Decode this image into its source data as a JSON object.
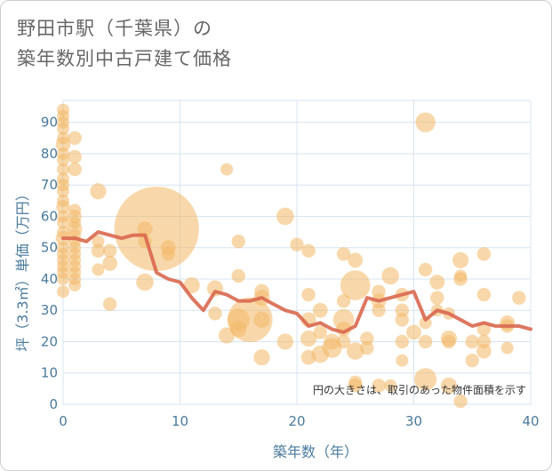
{
  "title_line1": "野田市駅（千葉県）の",
  "title_line2": "築年数別中古戸建て価格",
  "chart_data": {
    "type": "scatter",
    "title": "野田市駅（千葉県）の築年数別中古戸建て価格",
    "xlabel": "築年数（年）",
    "ylabel": "坪（3.3㎡）単価（万円）",
    "note": "円の大きさは、取引のあった物件面積を示す",
    "xlim": [
      0,
      40
    ],
    "ylim": [
      0,
      97
    ],
    "xticks": [
      0,
      10,
      20,
      30,
      40
    ],
    "yticks": [
      0,
      10,
      20,
      30,
      40,
      50,
      60,
      70,
      80,
      90
    ],
    "colors": {
      "bubble": "#f2b866",
      "line": "#d9684f",
      "grid": "#d7e4f0",
      "axis_text": "#4a7a9c"
    },
    "points": [
      {
        "x": 0,
        "y": 94,
        "s": 1
      },
      {
        "x": 0,
        "y": 92,
        "s": 1
      },
      {
        "x": 0,
        "y": 90,
        "s": 1
      },
      {
        "x": 0,
        "y": 88,
        "s": 1
      },
      {
        "x": 0,
        "y": 85,
        "s": 1
      },
      {
        "x": 0,
        "y": 83,
        "s": 1.2
      },
      {
        "x": 0,
        "y": 80,
        "s": 1
      },
      {
        "x": 0,
        "y": 78,
        "s": 1
      },
      {
        "x": 0,
        "y": 75,
        "s": 1
      },
      {
        "x": 0,
        "y": 72,
        "s": 1
      },
      {
        "x": 0,
        "y": 70,
        "s": 1
      },
      {
        "x": 0,
        "y": 68,
        "s": 1
      },
      {
        "x": 0,
        "y": 65,
        "s": 1
      },
      {
        "x": 0,
        "y": 63,
        "s": 1.1
      },
      {
        "x": 0,
        "y": 60,
        "s": 1
      },
      {
        "x": 0,
        "y": 58,
        "s": 1
      },
      {
        "x": 0,
        "y": 55,
        "s": 1
      },
      {
        "x": 0,
        "y": 53,
        "s": 1.2
      },
      {
        "x": 0,
        "y": 50,
        "s": 1
      },
      {
        "x": 0,
        "y": 48,
        "s": 1
      },
      {
        "x": 0,
        "y": 46,
        "s": 1
      },
      {
        "x": 0,
        "y": 44,
        "s": 1
      },
      {
        "x": 0,
        "y": 42,
        "s": 1
      },
      {
        "x": 0,
        "y": 40,
        "s": 1
      },
      {
        "x": 0,
        "y": 36,
        "s": 1
      },
      {
        "x": 1,
        "y": 85,
        "s": 1.1
      },
      {
        "x": 1,
        "y": 79,
        "s": 1.1
      },
      {
        "x": 1,
        "y": 75,
        "s": 1.1
      },
      {
        "x": 1,
        "y": 62,
        "s": 1
      },
      {
        "x": 1,
        "y": 60,
        "s": 1.1
      },
      {
        "x": 1,
        "y": 58,
        "s": 1
      },
      {
        "x": 1,
        "y": 56,
        "s": 1.2
      },
      {
        "x": 1,
        "y": 54,
        "s": 1
      },
      {
        "x": 1,
        "y": 52,
        "s": 1
      },
      {
        "x": 1,
        "y": 50,
        "s": 1
      },
      {
        "x": 1,
        "y": 48,
        "s": 1
      },
      {
        "x": 1,
        "y": 46,
        "s": 1
      },
      {
        "x": 1,
        "y": 44,
        "s": 1
      },
      {
        "x": 1,
        "y": 42,
        "s": 1
      },
      {
        "x": 1,
        "y": 40,
        "s": 1
      },
      {
        "x": 1,
        "y": 38,
        "s": 1
      },
      {
        "x": 3,
        "y": 68,
        "s": 1.3
      },
      {
        "x": 3,
        "y": 52,
        "s": 1
      },
      {
        "x": 3,
        "y": 49,
        "s": 1.1
      },
      {
        "x": 3,
        "y": 43,
        "s": 1
      },
      {
        "x": 4,
        "y": 49,
        "s": 1.1
      },
      {
        "x": 4,
        "y": 45,
        "s": 1.2
      },
      {
        "x": 4,
        "y": 32,
        "s": 1.1
      },
      {
        "x": 8,
        "y": 56,
        "s": 6.8
      },
      {
        "x": 7,
        "y": 56,
        "s": 1.2
      },
      {
        "x": 7,
        "y": 52,
        "s": 1.1
      },
      {
        "x": 7,
        "y": 39,
        "s": 1.4
      },
      {
        "x": 9,
        "y": 50,
        "s": 1.2
      },
      {
        "x": 9,
        "y": 48,
        "s": 1.1
      },
      {
        "x": 11,
        "y": 38,
        "s": 1.3
      },
      {
        "x": 13,
        "y": 37,
        "s": 1.3
      },
      {
        "x": 13,
        "y": 29,
        "s": 1.1
      },
      {
        "x": 14,
        "y": 75,
        "s": 1
      },
      {
        "x": 15,
        "y": 52,
        "s": 1.1
      },
      {
        "x": 15,
        "y": 41,
        "s": 1.1
      },
      {
        "x": 16,
        "y": 27,
        "s": 3.6
      },
      {
        "x": 15,
        "y": 27,
        "s": 1.8
      },
      {
        "x": 15,
        "y": 24,
        "s": 1.3
      },
      {
        "x": 14,
        "y": 22,
        "s": 1.3
      },
      {
        "x": 17,
        "y": 36,
        "s": 1.2
      },
      {
        "x": 17,
        "y": 34,
        "s": 1.3
      },
      {
        "x": 17,
        "y": 27,
        "s": 1.3
      },
      {
        "x": 17,
        "y": 15,
        "s": 1.3
      },
      {
        "x": 19,
        "y": 60,
        "s": 1.4
      },
      {
        "x": 19,
        "y": 20,
        "s": 1.3
      },
      {
        "x": 20,
        "y": 51,
        "s": 1.1
      },
      {
        "x": 21,
        "y": 49,
        "s": 1.1
      },
      {
        "x": 21,
        "y": 35,
        "s": 1.1
      },
      {
        "x": 21,
        "y": 27,
        "s": 1.2
      },
      {
        "x": 21,
        "y": 21,
        "s": 1.3
      },
      {
        "x": 21,
        "y": 15,
        "s": 1.2
      },
      {
        "x": 22,
        "y": 30,
        "s": 1.2
      },
      {
        "x": 22,
        "y": 23,
        "s": 1.1
      },
      {
        "x": 22,
        "y": 16,
        "s": 1.4
      },
      {
        "x": 23,
        "y": 20,
        "s": 1.3
      },
      {
        "x": 23,
        "y": 18,
        "s": 1.6
      },
      {
        "x": 24,
        "y": 48,
        "s": 1.1
      },
      {
        "x": 24,
        "y": 33,
        "s": 1.1
      },
      {
        "x": 24,
        "y": 27,
        "s": 1.7
      },
      {
        "x": 24,
        "y": 24,
        "s": 1.2
      },
      {
        "x": 24,
        "y": 20,
        "s": 1.1
      },
      {
        "x": 25,
        "y": 46,
        "s": 1.2
      },
      {
        "x": 25,
        "y": 38,
        "s": 2.4
      },
      {
        "x": 25,
        "y": 17,
        "s": 1.4
      },
      {
        "x": 25,
        "y": 7,
        "s": 1.1
      },
      {
        "x": 25,
        "y": 6,
        "s": 1.1
      },
      {
        "x": 26,
        "y": 21,
        "s": 1.1
      },
      {
        "x": 26,
        "y": 18,
        "s": 1.1
      },
      {
        "x": 27,
        "y": 36,
        "s": 1.1
      },
      {
        "x": 27,
        "y": 33,
        "s": 1.2
      },
      {
        "x": 27,
        "y": 30,
        "s": 1.1
      },
      {
        "x": 27,
        "y": 6,
        "s": 1.1
      },
      {
        "x": 28,
        "y": 41,
        "s": 1.4
      },
      {
        "x": 28,
        "y": 6,
        "s": 1
      },
      {
        "x": 29,
        "y": 35,
        "s": 1.1
      },
      {
        "x": 29,
        "y": 30,
        "s": 1.1
      },
      {
        "x": 29,
        "y": 27,
        "s": 1.1
      },
      {
        "x": 29,
        "y": 20,
        "s": 1.1
      },
      {
        "x": 29,
        "y": 14,
        "s": 1
      },
      {
        "x": 30,
        "y": 23,
        "s": 1.2
      },
      {
        "x": 31,
        "y": 90,
        "s": 1.6
      },
      {
        "x": 31,
        "y": 43,
        "s": 1.1
      },
      {
        "x": 31,
        "y": 26,
        "s": 1
      },
      {
        "x": 31,
        "y": 20,
        "s": 1.1
      },
      {
        "x": 31,
        "y": 8,
        "s": 1.8
      },
      {
        "x": 32,
        "y": 39,
        "s": 1.2
      },
      {
        "x": 32,
        "y": 34,
        "s": 1.1
      },
      {
        "x": 32,
        "y": 30,
        "s": 1
      },
      {
        "x": 33,
        "y": 29,
        "s": 1
      },
      {
        "x": 33,
        "y": 21,
        "s": 1.3
      },
      {
        "x": 33,
        "y": 20,
        "s": 1.1
      },
      {
        "x": 33,
        "y": 6,
        "s": 1.3
      },
      {
        "x": 34,
        "y": 46,
        "s": 1.3
      },
      {
        "x": 34,
        "y": 41,
        "s": 1
      },
      {
        "x": 34,
        "y": 40,
        "s": 1.1
      },
      {
        "x": 34,
        "y": 1,
        "s": 1.1
      },
      {
        "x": 35,
        "y": 20,
        "s": 1.1
      },
      {
        "x": 35,
        "y": 14,
        "s": 1.1
      },
      {
        "x": 36,
        "y": 48,
        "s": 1.1
      },
      {
        "x": 36,
        "y": 35,
        "s": 1.1
      },
      {
        "x": 36,
        "y": 24,
        "s": 1.1
      },
      {
        "x": 36,
        "y": 20,
        "s": 1.1
      },
      {
        "x": 36,
        "y": 17,
        "s": 1.2
      },
      {
        "x": 38,
        "y": 26,
        "s": 1.2
      },
      {
        "x": 38,
        "y": 25,
        "s": 1.1
      },
      {
        "x": 38,
        "y": 18,
        "s": 1
      },
      {
        "x": 39,
        "y": 34,
        "s": 1.1
      }
    ],
    "trend": {
      "x": [
        0,
        1,
        2,
        3,
        4,
        5,
        6,
        7,
        8,
        9,
        10,
        11,
        12,
        13,
        14,
        15,
        16,
        17,
        18,
        19,
        20,
        21,
        22,
        23,
        24,
        25,
        26,
        27,
        28,
        29,
        30,
        31,
        32,
        33,
        34,
        35,
        36,
        37,
        38,
        39,
        40
      ],
      "y": [
        53,
        53,
        52,
        55,
        54,
        53,
        54,
        54,
        42,
        40,
        39,
        34,
        30,
        36,
        35,
        33,
        33,
        34,
        32,
        30,
        29,
        25,
        26,
        24,
        23,
        25,
        34,
        33,
        34,
        35,
        36,
        27,
        30,
        29,
        27,
        25,
        26,
        25,
        25,
        25,
        24
      ]
    }
  }
}
